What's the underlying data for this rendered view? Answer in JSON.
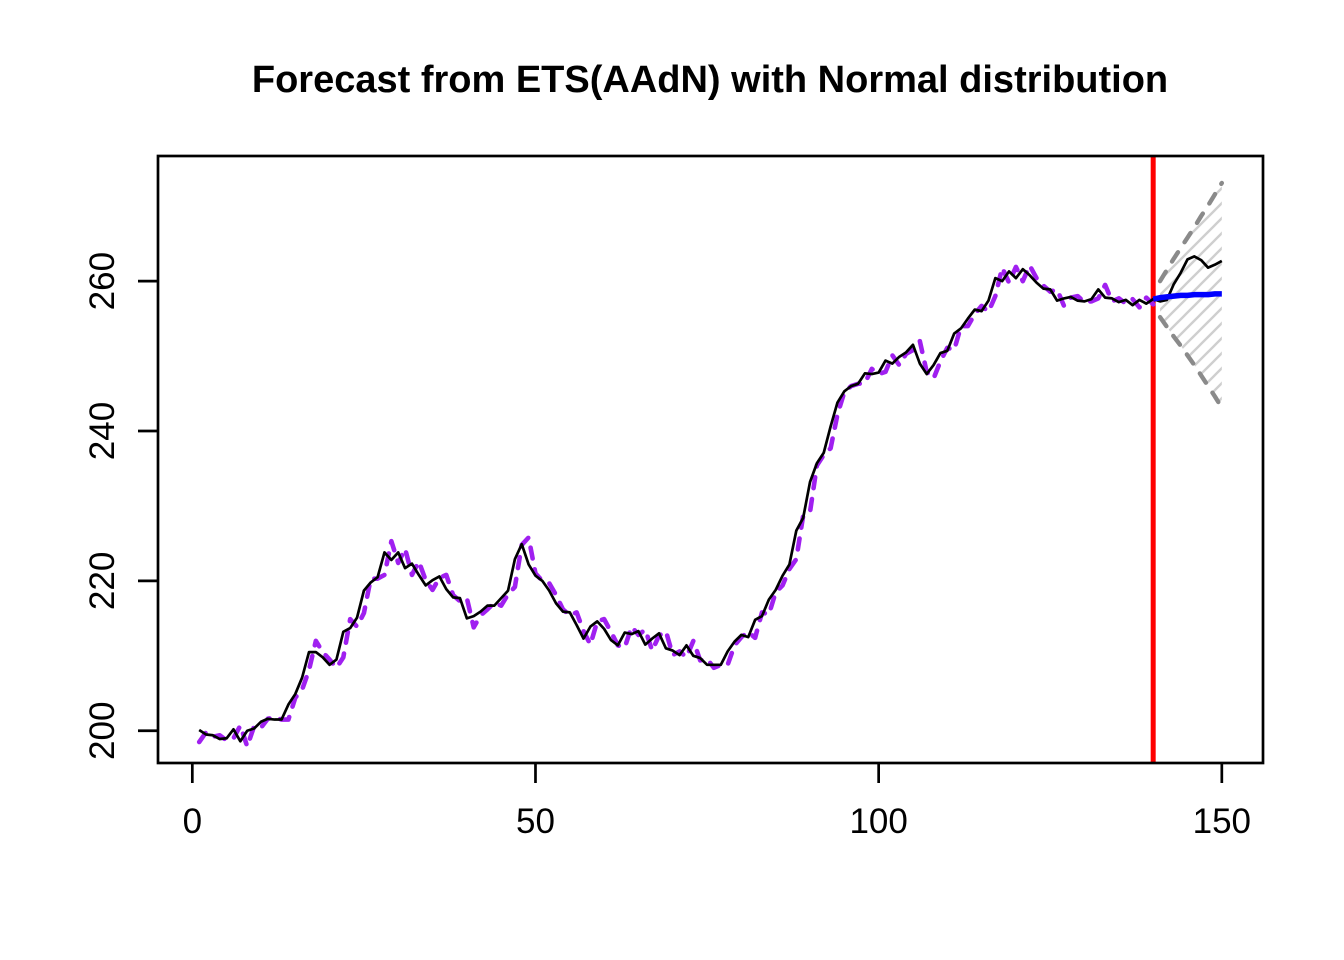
{
  "chart_data": {
    "type": "line",
    "title": "Forecast from ETS(AAdN) with Normal distribution",
    "xlabel": "",
    "ylabel": "",
    "x_ticks": [
      0,
      50,
      100,
      150
    ],
    "y_ticks": [
      200,
      220,
      240,
      260
    ],
    "xlim": [
      -5,
      156
    ],
    "ylim": [
      195.7,
      276.7
    ],
    "grid": "off",
    "legend_position": "none",
    "forecast_origin_x": 140,
    "origin_line_color": "#FF0000",
    "interval_fill": {
      "hatch_color": "#CFCFCF",
      "angle_deg": 45
    },
    "series": [
      {
        "name": "actuals",
        "color": "#000000",
        "line_style": "solid",
        "x_start": 1,
        "values": [
          200.1,
          199.5,
          199.4,
          198.9,
          199.0,
          200.2,
          198.6,
          200.0,
          200.3,
          201.2,
          201.6,
          201.5,
          201.5,
          203.5,
          204.9,
          207.1,
          210.5,
          210.5,
          209.8,
          208.8,
          209.5,
          213.2,
          213.7,
          215.1,
          218.7,
          219.8,
          220.5,
          223.8,
          222.8,
          223.8,
          221.7,
          222.3,
          220.8,
          219.4,
          220.1,
          220.6,
          218.9,
          217.8,
          217.7,
          215.0,
          215.3,
          215.9,
          216.7,
          216.7,
          217.7,
          218.7,
          222.9,
          224.9,
          222.2,
          220.7,
          220.0,
          218.7,
          217.0,
          215.9,
          215.8,
          214.1,
          212.3,
          213.9,
          214.6,
          213.6,
          212.1,
          211.4,
          213.1,
          212.9,
          213.3,
          211.5,
          212.3,
          213.0,
          211.0,
          210.7,
          210.1,
          211.4,
          210.0,
          209.7,
          208.8,
          208.8,
          208.8,
          210.6,
          211.9,
          212.8,
          212.5,
          214.8,
          215.3,
          217.5,
          218.8,
          220.7,
          222.2,
          226.7,
          228.4,
          233.2,
          235.7,
          237.1,
          240.6,
          243.8,
          245.3,
          246.0,
          246.3,
          247.7,
          247.6,
          247.8,
          249.4,
          249.0,
          249.9,
          250.5,
          251.5,
          249.0,
          247.6,
          248.8,
          250.4,
          250.7,
          253.0,
          253.7,
          255.0,
          256.2,
          256.0,
          257.4,
          260.4,
          260.0,
          261.3,
          260.4,
          261.6,
          260.8,
          259.8,
          259.0,
          258.9,
          257.4,
          257.7,
          257.9,
          257.4,
          257.3,
          257.6,
          258.9,
          257.8,
          257.7,
          257.2,
          257.5,
          256.8,
          257.5,
          257.0,
          257.6,
          257.3,
          257.5,
          259.6,
          261.1,
          262.9,
          263.3,
          262.8,
          261.8,
          262.2,
          262.7
        ]
      },
      {
        "name": "fitted",
        "color": "#A020F0",
        "line_style": "dashed",
        "x_start": 1,
        "values": [
          198.5,
          199.8,
          199.2,
          199.4,
          198.7,
          199.0,
          200.7,
          197.9,
          200.6,
          200.4,
          201.6,
          201.8,
          201.5,
          201.5,
          204.4,
          205.5,
          208.1,
          212.0,
          210.5,
          209.5,
          208.4,
          209.8,
          214.9,
          213.9,
          215.7,
          220.3,
          220.3,
          220.8,
          225.3,
          222.4,
          224.3,
          220.8,
          222.6,
          220.1,
          218.8,
          220.4,
          220.8,
          218.1,
          217.3,
          217.7,
          213.8,
          215.4,
          216.2,
          217.1,
          216.7,
          218.2,
          219.2,
          224.8,
          225.8,
          221.0,
          220.0,
          219.7,
          218.1,
          216.2,
          215.4,
          215.8,
          213.3,
          211.5,
          214.6,
          214.9,
          213.2,
          211.4,
          211.1,
          213.9,
          212.8,
          213.5,
          210.7,
          212.7,
          213.3,
          210.1,
          210.6,
          209.8,
          212.0,
          209.4,
          209.6,
          208.4,
          208.8,
          208.8,
          211.4,
          212.5,
          213.2,
          212.4,
          215.8,
          215.5,
          218.5,
          219.4,
          221.6,
          222.9,
          228.7,
          229.2,
          235.4,
          236.8,
          237.7,
          242.2,
          245.2,
          246.0,
          246.3,
          246.4,
          248.3,
          247.6,
          247.9,
          250.1,
          248.8,
          250.3,
          250.8,
          252.0,
          247.9,
          247.0,
          249.3,
          251.1,
          250.8,
          254.0,
          254.0,
          255.6,
          256.7,
          255.9,
          258.0,
          261.8,
          259.8,
          261.9,
          260.0,
          262.1,
          260.4,
          259.4,
          258.6,
          258.9,
          256.7,
          257.8,
          258.0,
          257.2,
          257.3,
          257.7,
          259.5,
          257.3,
          257.7,
          257.0,
          257.6,
          256.5,
          257.8,
          256.9
        ]
      },
      {
        "name": "point_forecast",
        "color": "#0000FF",
        "line_style": "solid",
        "x_start": 140,
        "values": [
          257.6,
          257.8,
          257.9,
          258.0,
          258.1,
          258.1,
          258.2,
          258.2,
          258.2,
          258.3,
          258.3
        ]
      },
      {
        "name": "upper_interval",
        "color": "#8A8A8A",
        "line_style": "dashed",
        "x_start": 141,
        "values": [
          260.0,
          261.5,
          263.0,
          264.4,
          265.8,
          267.2,
          268.7,
          270.1,
          271.6,
          273.1
        ]
      },
      {
        "name": "lower_interval",
        "color": "#8A8A8A",
        "line_style": "dashed",
        "x_start": 141,
        "values": [
          255.2,
          253.9,
          252.6,
          251.4,
          250.1,
          248.8,
          247.4,
          246.0,
          244.6,
          243.1
        ]
      }
    ]
  }
}
